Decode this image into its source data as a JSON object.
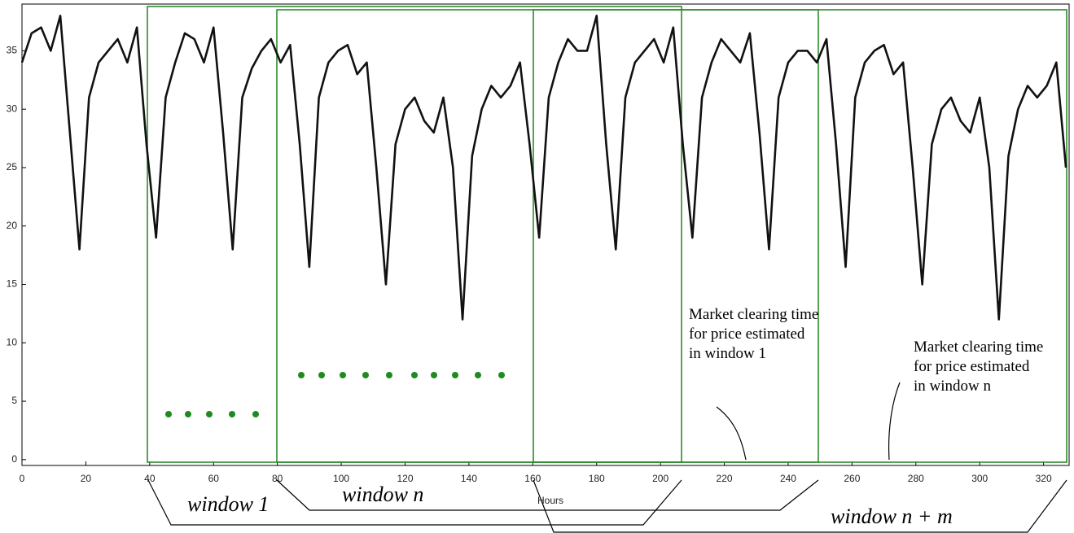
{
  "chart_data": {
    "type": "line",
    "x_label": "Hours",
    "xlim": [
      0,
      328
    ],
    "ylim": [
      -0.5,
      39
    ],
    "xticks": [
      0,
      20,
      40,
      60,
      80,
      100,
      120,
      140,
      160,
      180,
      200,
      220,
      240,
      260,
      280,
      300,
      320
    ],
    "yticks": [
      0,
      5,
      10,
      15,
      20,
      25,
      30,
      35
    ],
    "x": [
      0,
      3,
      6,
      9,
      12,
      15,
      18,
      21,
      24,
      27,
      30,
      33,
      36,
      39,
      42,
      45,
      48,
      51,
      54,
      57,
      60,
      63,
      66,
      69,
      72,
      75,
      78,
      81,
      84,
      87,
      90,
      93,
      96,
      99,
      102,
      105,
      108,
      111,
      114,
      117,
      120,
      123,
      126,
      129,
      132,
      135,
      138,
      141,
      144,
      147,
      150,
      153,
      156,
      159,
      162,
      165,
      168,
      171,
      174,
      177,
      180,
      183,
      186,
      189,
      192,
      195,
      198,
      201,
      204,
      207,
      210,
      213,
      216,
      219,
      222,
      225,
      228,
      231,
      234,
      237,
      240,
      243,
      246,
      249,
      252,
      255,
      258,
      261,
      264,
      267,
      270,
      273,
      276,
      279,
      282,
      285,
      288,
      291,
      294,
      297,
      300,
      303,
      306,
      309,
      312,
      315,
      318,
      321,
      324,
      327
    ],
    "series": [
      {
        "color": "#111111",
        "values": [
          34,
          36.5,
          37,
          35,
          38,
          28,
          18,
          31,
          34,
          35,
          36,
          34,
          37,
          27,
          19,
          31,
          34,
          36.5,
          36,
          34,
          37,
          28,
          18,
          31,
          33.5,
          35,
          36,
          34,
          35.5,
          27,
          16.5,
          31,
          34,
          35,
          35.5,
          33,
          34,
          25,
          15,
          27,
          30,
          31,
          29,
          28,
          31,
          25,
          12,
          26,
          30,
          32,
          31,
          32,
          34,
          27,
          19,
          31,
          34,
          36,
          35,
          35,
          38,
          27,
          18,
          31,
          34,
          35,
          36,
          34,
          37,
          27,
          19,
          31,
          34,
          36,
          35,
          34,
          36.5,
          28,
          18,
          31,
          34,
          35,
          35,
          34,
          36,
          27,
          16.5,
          31,
          34,
          35,
          35.5,
          33,
          34,
          25,
          15,
          27,
          30,
          31,
          29,
          28,
          31,
          25,
          12,
          26,
          30,
          32,
          31,
          32,
          34,
          25
        ]
      }
    ],
    "annotations": [
      {
        "text": "window 1"
      },
      {
        "text": "window n"
      },
      {
        "text": "window n + m"
      },
      {
        "text": "Market clearing time for price estimated in window 1"
      },
      {
        "text": "Market clearing time for price estimated in window n"
      }
    ]
  }
}
